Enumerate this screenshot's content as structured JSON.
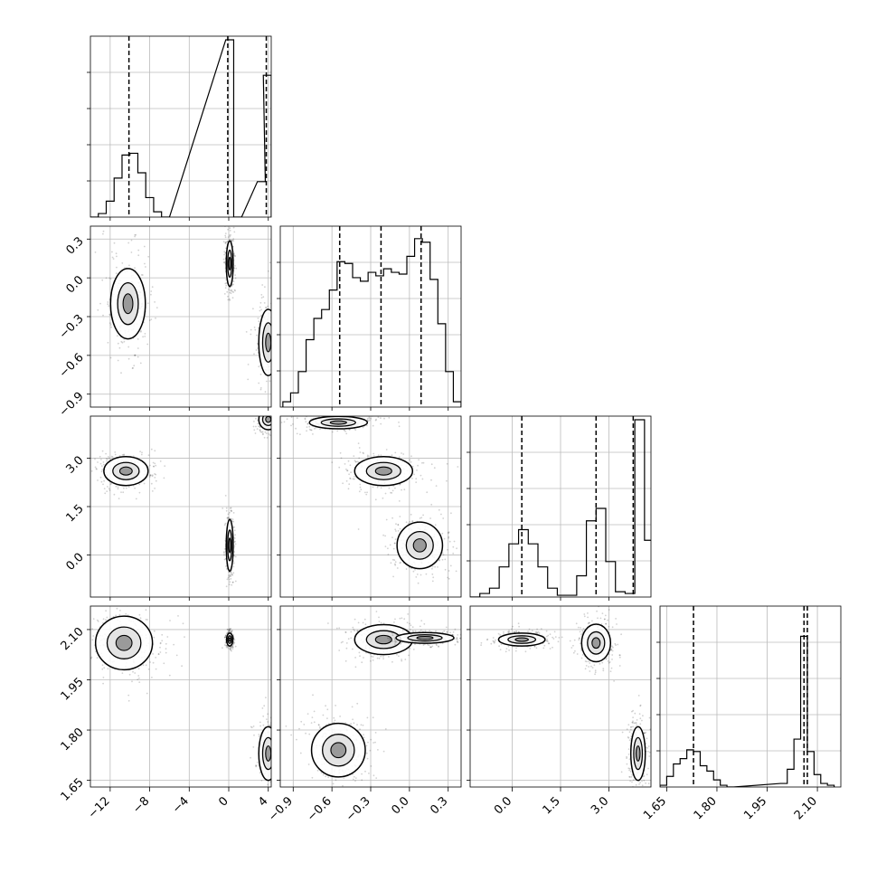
{
  "chart_data": {
    "type": "scatter",
    "title": "",
    "variables": [
      {
        "index": 0,
        "range": [
          -14,
          4.3
        ],
        "ticks": [
          -12,
          -8,
          -4,
          0,
          4
        ],
        "tick_labels": [
          "−12",
          "−8",
          "−4",
          "0",
          "4"
        ]
      },
      {
        "index": 1,
        "range": [
          -1.0,
          0.4
        ],
        "ticks": [
          -0.9,
          -0.6,
          -0.3,
          0.0,
          0.3
        ],
        "tick_labels": [
          "−0.9",
          "−0.6",
          "−0.3",
          "0.0",
          "0.3"
        ]
      },
      {
        "index": 2,
        "range": [
          -1.3,
          4.3
        ],
        "ticks": [
          0.0,
          1.5,
          3.0
        ],
        "tick_labels": [
          "0.0",
          "1.5",
          "3.0"
        ]
      },
      {
        "index": 3,
        "range": [
          1.63,
          2.17
        ],
        "ticks": [
          1.65,
          1.8,
          1.95,
          2.1
        ],
        "tick_labels": [
          "1.65",
          "1.80",
          "1.95",
          "2.10"
        ]
      }
    ],
    "marginals": [
      {
        "variable": 0,
        "bins": [
          {
            "x": -14,
            "y": 0
          },
          {
            "x": -13.2,
            "y": 0.02
          },
          {
            "x": -12.4,
            "y": 0.09
          },
          {
            "x": -11.6,
            "y": 0.22
          },
          {
            "x": -10.8,
            "y": 0.35
          },
          {
            "x": -10.0,
            "y": 0.36
          },
          {
            "x": -9.2,
            "y": 0.25
          },
          {
            "x": -8.4,
            "y": 0.11
          },
          {
            "x": -7.6,
            "y": 0.03
          },
          {
            "x": -6.8,
            "y": 0
          },
          {
            "x": -0.3,
            "y": 1.0
          },
          {
            "x": 0.5,
            "y": 0
          },
          {
            "x": 2.9,
            "y": 0.2
          },
          {
            "x": 3.5,
            "y": 0.8
          }
        ],
        "quantiles": [
          -10.1,
          -0.1,
          3.8
        ]
      },
      {
        "variable": 1,
        "bins": [
          {
            "x": -0.98,
            "y": 0.03
          },
          {
            "x": -0.92,
            "y": 0.08
          },
          {
            "x": -0.86,
            "y": 0.2
          },
          {
            "x": -0.8,
            "y": 0.38
          },
          {
            "x": -0.74,
            "y": 0.5
          },
          {
            "x": -0.68,
            "y": 0.55
          },
          {
            "x": -0.62,
            "y": 0.66
          },
          {
            "x": -0.56,
            "y": 0.82
          },
          {
            "x": -0.5,
            "y": 0.81
          },
          {
            "x": -0.44,
            "y": 0.73
          },
          {
            "x": -0.38,
            "y": 0.71
          },
          {
            "x": -0.32,
            "y": 0.76
          },
          {
            "x": -0.26,
            "y": 0.74
          },
          {
            "x": -0.2,
            "y": 0.78
          },
          {
            "x": -0.14,
            "y": 0.76
          },
          {
            "x": -0.08,
            "y": 0.75
          },
          {
            "x": -0.02,
            "y": 0.85
          },
          {
            "x": 0.04,
            "y": 0.95
          },
          {
            "x": 0.1,
            "y": 0.93
          },
          {
            "x": 0.16,
            "y": 0.72
          },
          {
            "x": 0.22,
            "y": 0.47
          },
          {
            "x": 0.28,
            "y": 0.2
          },
          {
            "x": 0.34,
            "y": 0.03
          }
        ],
        "quantiles": [
          -0.54,
          -0.22,
          0.09
        ]
      },
      {
        "variable": 2,
        "bins": [
          {
            "x": -1.3,
            "y": 0
          },
          {
            "x": -1.0,
            "y": 0.02
          },
          {
            "x": -0.7,
            "y": 0.05
          },
          {
            "x": -0.4,
            "y": 0.17
          },
          {
            "x": -0.1,
            "y": 0.3
          },
          {
            "x": 0.2,
            "y": 0.38
          },
          {
            "x": 0.5,
            "y": 0.3
          },
          {
            "x": 0.8,
            "y": 0.17
          },
          {
            "x": 1.1,
            "y": 0.05
          },
          {
            "x": 1.4,
            "y": 0.01
          },
          {
            "x": 1.7,
            "y": 0.01
          },
          {
            "x": 2.0,
            "y": 0.12
          },
          {
            "x": 2.3,
            "y": 0.43
          },
          {
            "x": 2.6,
            "y": 0.5
          },
          {
            "x": 2.9,
            "y": 0.2
          },
          {
            "x": 3.2,
            "y": 0.03
          },
          {
            "x": 3.5,
            "y": 0.02
          },
          {
            "x": 3.8,
            "y": 1.0
          },
          {
            "x": 4.1,
            "y": 0.32
          }
        ],
        "quantiles": [
          0.3,
          2.6,
          3.75
        ]
      },
      {
        "variable": 3,
        "bins": [
          {
            "x": 1.63,
            "y": 0.01
          },
          {
            "x": 1.65,
            "y": 0.06
          },
          {
            "x": 1.67,
            "y": 0.13
          },
          {
            "x": 1.69,
            "y": 0.16
          },
          {
            "x": 1.71,
            "y": 0.21
          },
          {
            "x": 1.73,
            "y": 0.2
          },
          {
            "x": 1.75,
            "y": 0.12
          },
          {
            "x": 1.77,
            "y": 0.09
          },
          {
            "x": 1.79,
            "y": 0.04
          },
          {
            "x": 1.81,
            "y": 0.01
          },
          {
            "x": 1.83,
            "y": 0
          },
          {
            "x": 1.99,
            "y": 0.02
          },
          {
            "x": 2.01,
            "y": 0.1
          },
          {
            "x": 2.03,
            "y": 0.27
          },
          {
            "x": 2.05,
            "y": 0.85
          },
          {
            "x": 2.07,
            "y": 0.2
          },
          {
            "x": 2.09,
            "y": 0.07
          },
          {
            "x": 2.11,
            "y": 0.02
          },
          {
            "x": 2.13,
            "y": 0.01
          }
        ],
        "quantiles": [
          1.73,
          2.06,
          2.07
        ]
      }
    ],
    "joint_modes": [
      {
        "x_var": 0,
        "y_var": 1,
        "modes": [
          {
            "cx": -10.2,
            "cy": -0.2,
            "sx": 1.1,
            "sy": 0.17
          },
          {
            "cx": 0.1,
            "cy": 0.11,
            "sx": 0.22,
            "sy": 0.11
          },
          {
            "cx": 4.0,
            "cy": -0.5,
            "sx": 0.6,
            "sy": 0.16
          }
        ]
      },
      {
        "x_var": 0,
        "y_var": 2,
        "modes": [
          {
            "cx": -10.4,
            "cy": 2.6,
            "sx": 1.4,
            "sy": 0.28
          },
          {
            "cx": 0.1,
            "cy": 0.3,
            "sx": 0.22,
            "sy": 0.5
          },
          {
            "cx": 4.0,
            "cy": 4.2,
            "sx": 0.6,
            "sy": 0.2
          }
        ]
      },
      {
        "x_var": 0,
        "y_var": 3,
        "modes": [
          {
            "cx": -10.6,
            "cy": 2.06,
            "sx": 1.8,
            "sy": 0.05
          },
          {
            "cx": 0.1,
            "cy": 2.07,
            "sx": 0.2,
            "sy": 0.012
          },
          {
            "cx": 4.0,
            "cy": 1.73,
            "sx": 0.6,
            "sy": 0.05
          }
        ]
      },
      {
        "x_var": 1,
        "y_var": 2,
        "modes": [
          {
            "cx": -0.55,
            "cy": 4.1,
            "sx": 0.14,
            "sy": 0.12
          },
          {
            "cx": -0.2,
            "cy": 2.6,
            "sx": 0.14,
            "sy": 0.28
          },
          {
            "cx": 0.08,
            "cy": 0.3,
            "sx": 0.11,
            "sy": 0.45
          }
        ]
      },
      {
        "x_var": 1,
        "y_var": 3,
        "modes": [
          {
            "cx": -0.2,
            "cy": 2.07,
            "sx": 0.14,
            "sy": 0.028
          },
          {
            "cx": 0.12,
            "cy": 2.075,
            "sx": 0.14,
            "sy": 0.01
          },
          {
            "cx": -0.55,
            "cy": 1.74,
            "sx": 0.13,
            "sy": 0.05
          }
        ]
      },
      {
        "x_var": 2,
        "y_var": 3,
        "modes": [
          {
            "cx": 0.3,
            "cy": 2.07,
            "sx": 0.45,
            "sy": 0.012
          },
          {
            "cx": 2.6,
            "cy": 2.06,
            "sx": 0.28,
            "sy": 0.035
          },
          {
            "cx": 3.9,
            "cy": 1.73,
            "sx": 0.14,
            "sy": 0.05
          }
        ]
      }
    ]
  }
}
